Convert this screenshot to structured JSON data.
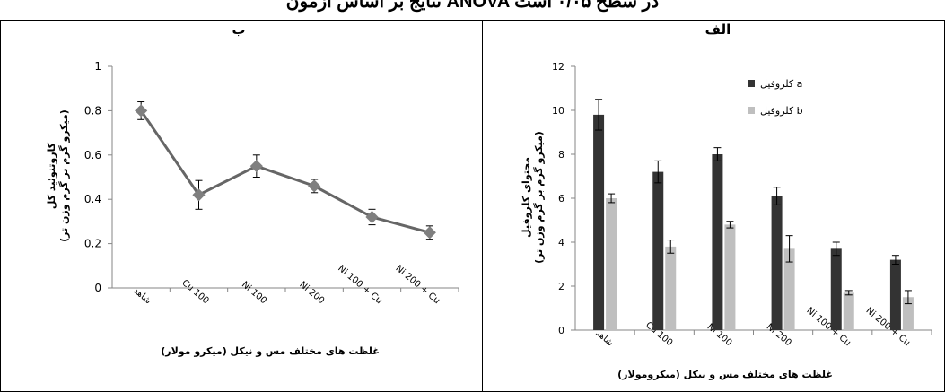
{
  "page_header": "نتایج بر اساس آزمون ANOVA در سطح ۰/۰۵ است",
  "chart_data": [
    {
      "id": "chart-total-carotenoid",
      "type": "line",
      "panel_label": "ب",
      "title": "",
      "xlabel": "غلظت های مختلف مس و نیکل (میکرو مولار)",
      "ylabel_line1": "کاروتنوئید کل",
      "ylabel_line2": "(میکرو گرم بر گرم وزن تر)",
      "categories": [
        "شاهد",
        "Cu 100",
        "Ni 100",
        "Ni 200",
        "Ni 100 + Cu",
        "Ni 200 + Cu"
      ],
      "ylim": [
        0,
        1
      ],
      "yticks": [
        "0",
        "0.2",
        "0.4",
        "0.6",
        "0.8",
        "1"
      ],
      "grid": false,
      "series": [
        {
          "values": [
            0.8,
            0.42,
            0.55,
            0.46,
            0.32,
            0.25
          ],
          "errors": [
            0.04,
            0.065,
            0.05,
            0.03,
            0.035,
            0.03
          ]
        }
      ],
      "colors": {
        "line": "#666666",
        "marker": "#7f7f7f"
      }
    },
    {
      "id": "chart-chlorophyll",
      "type": "bar",
      "panel_label": "الف",
      "title": "",
      "xlabel": "غلظت های مختلف مس و نیکل (میکرومولار)",
      "ylabel_line1": "محتوای کلروفیل",
      "ylabel_line2": "(میکرو گرم بر گرم وزن تر)",
      "categories": [
        "شاهد",
        "Cu 100",
        "Ni 100",
        "Ni 200",
        "Ni 100 + Cu",
        "Ni 200 + Cu"
      ],
      "ylim": [
        0,
        12
      ],
      "yticks": [
        "0",
        "2",
        "4",
        "6",
        "8",
        "10",
        "12"
      ],
      "grid": false,
      "legend_position": "top-right",
      "series": [
        {
          "name": "کلروفیل a",
          "color": "#333333",
          "values": [
            9.8,
            7.2,
            8.0,
            6.1,
            3.7,
            3.2
          ],
          "errors": [
            0.7,
            0.5,
            0.3,
            0.4,
            0.3,
            0.2
          ]
        },
        {
          "name": "کلروفیل b",
          "color": "#bfbfbf",
          "values": [
            6.0,
            3.8,
            4.8,
            3.7,
            1.7,
            1.5
          ],
          "errors": [
            0.2,
            0.3,
            0.15,
            0.6,
            0.1,
            0.3
          ]
        }
      ]
    }
  ]
}
